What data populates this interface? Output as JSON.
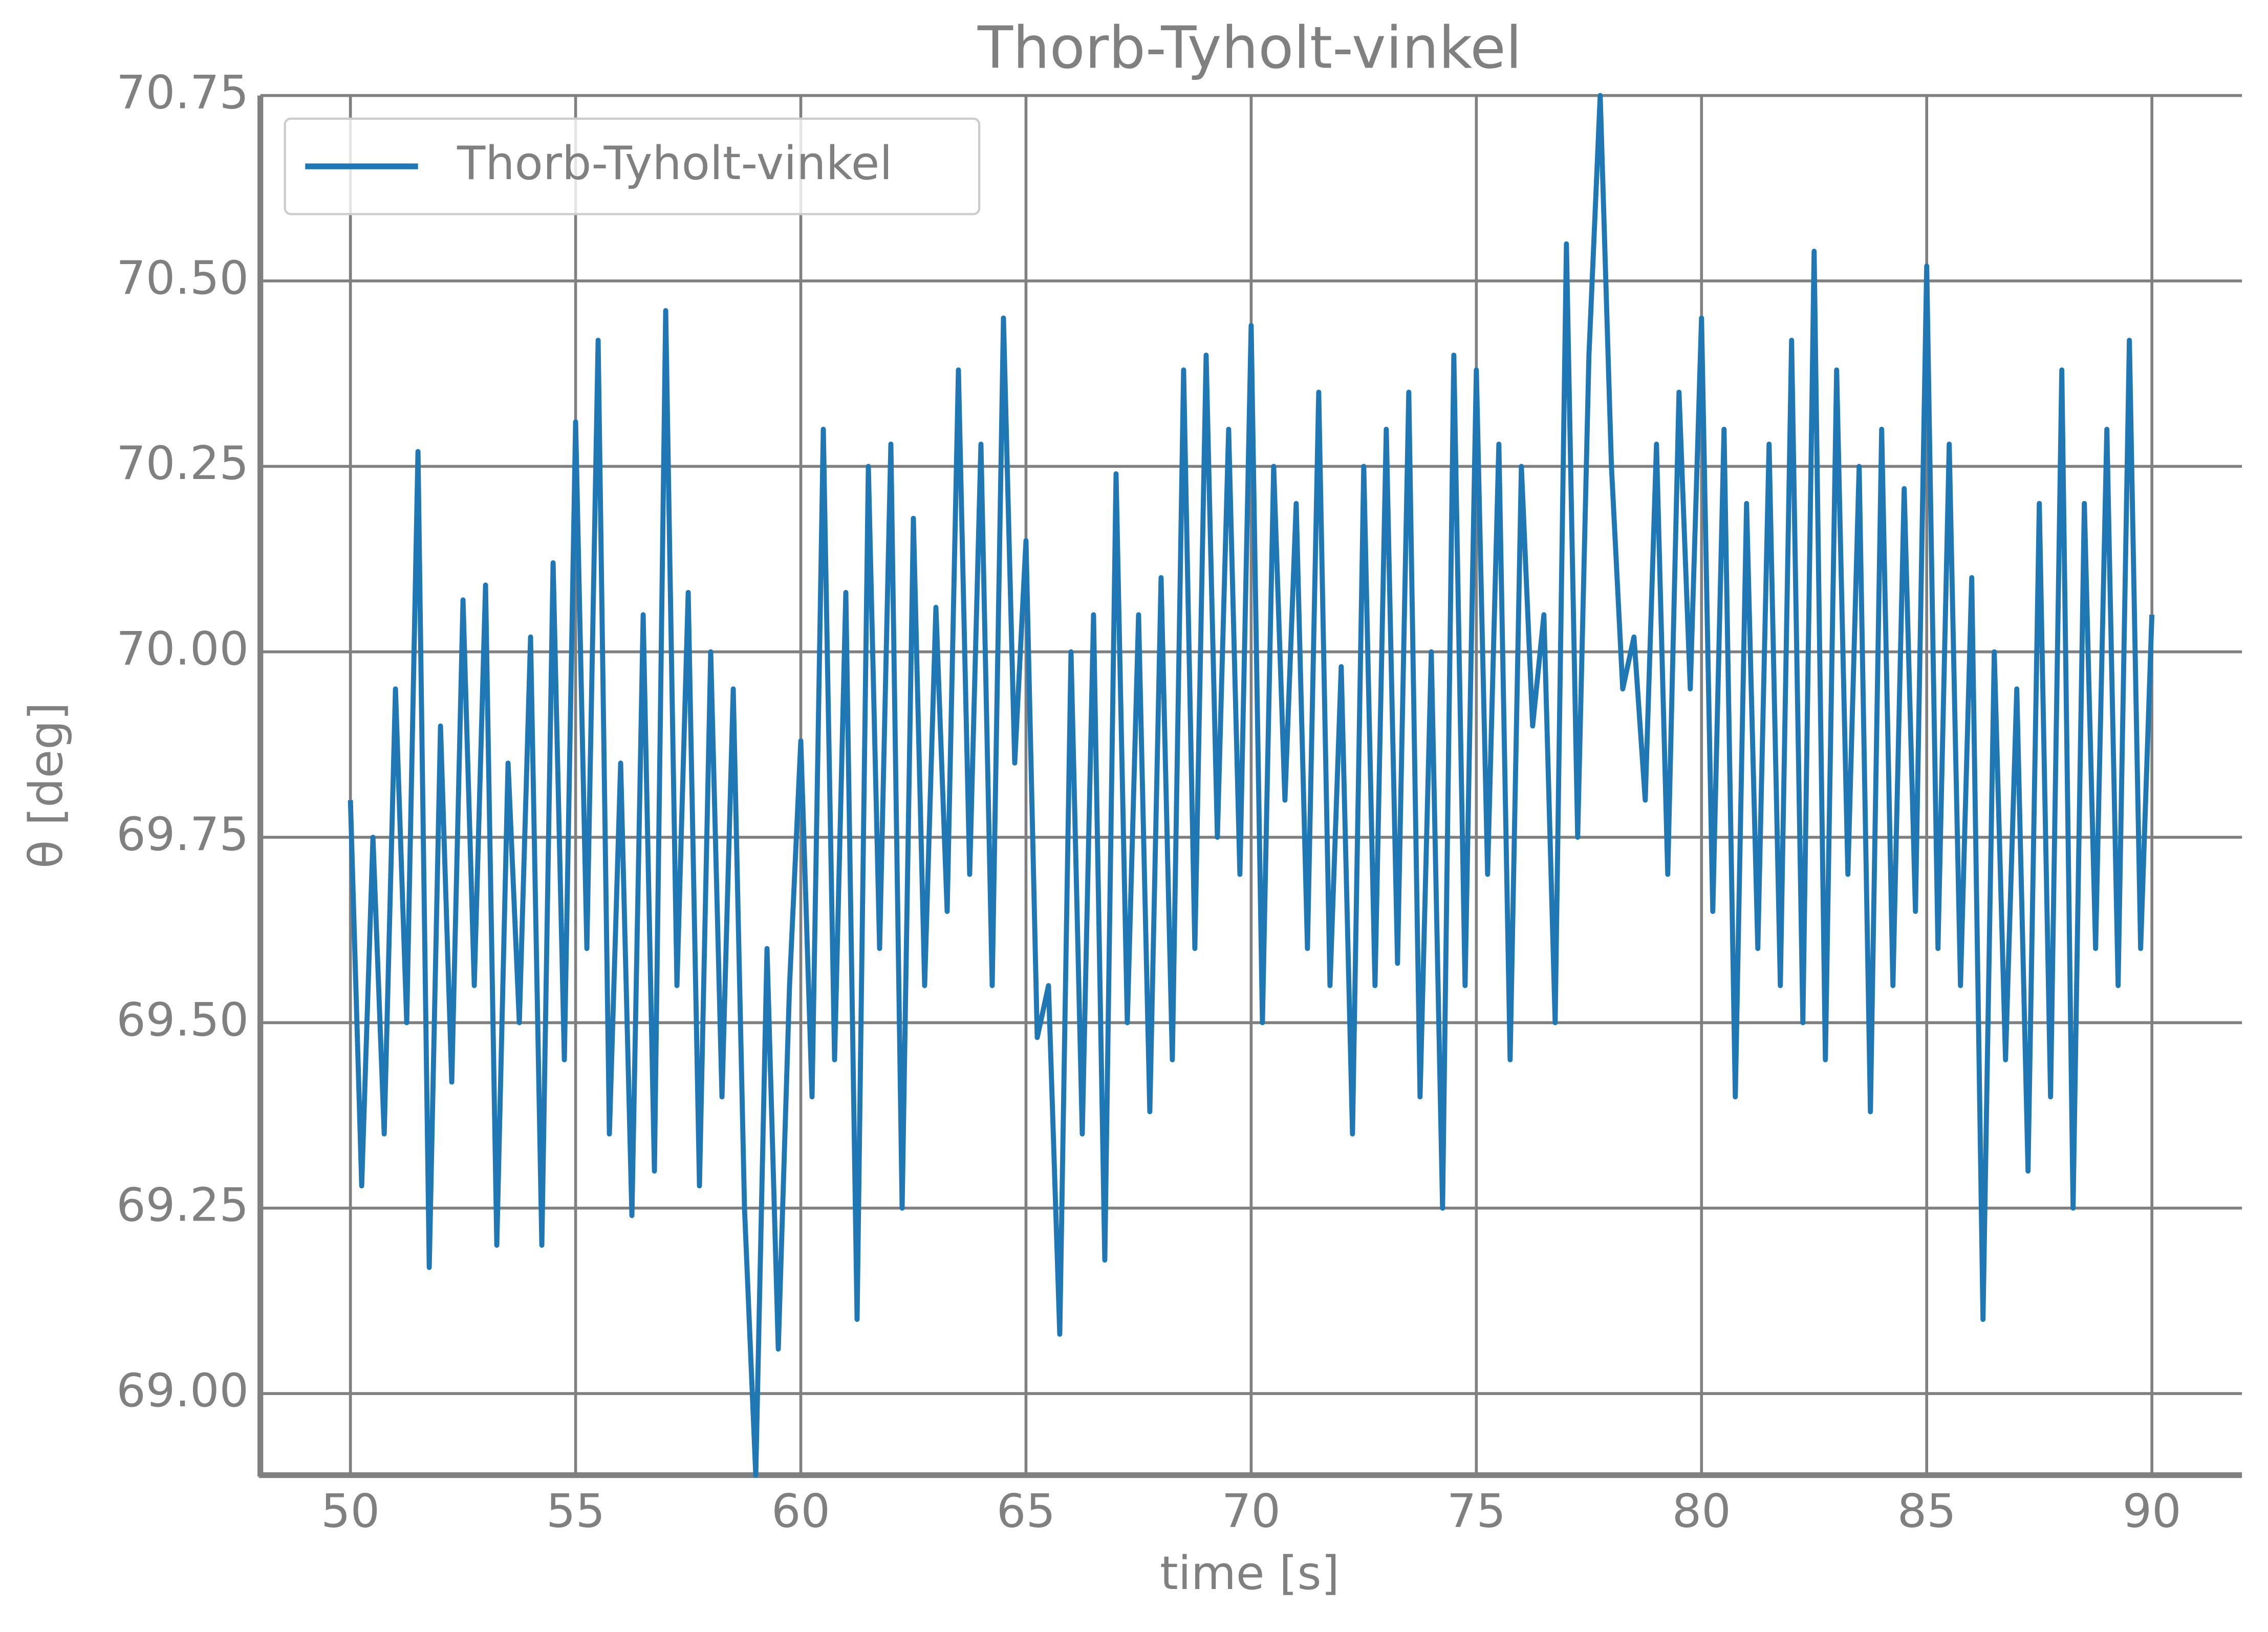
{
  "chart_data": {
    "type": "line",
    "title": "Thorb-Tyholt-vinkel",
    "xlabel": "time [s]",
    "ylabel": "θ [deg]",
    "legend": "upper left",
    "grid": true,
    "xlim": [
      48,
      92
    ],
    "ylim": [
      68.89,
      70.75
    ],
    "xticks": [
      50,
      55,
      60,
      65,
      70,
      75,
      80,
      85,
      90
    ],
    "yticks": [
      {
        "value": 69,
        "label": "69.00"
      },
      {
        "value": 69.25,
        "label": "69.25"
      },
      {
        "value": 69.5,
        "label": "69.50"
      },
      {
        "value": 69.75,
        "label": "69.75"
      },
      {
        "value": 70,
        "label": "70.00"
      },
      {
        "value": 70.25,
        "label": "70.25"
      },
      {
        "value": 70.5,
        "label": "70.50"
      },
      {
        "value": 70.75,
        "label": "70.75"
      }
    ],
    "x": [
      50,
      50.25,
      50.5,
      50.75,
      51,
      51.25,
      51.5,
      51.75,
      52,
      52.25,
      52.5,
      52.75,
      53,
      53.25,
      53.5,
      53.75,
      54,
      54.25,
      54.5,
      54.75,
      55,
      55.25,
      55.5,
      55.75,
      56,
      56.25,
      56.5,
      56.75,
      57,
      57.25,
      57.5,
      57.75,
      58,
      58.25,
      58.5,
      58.75,
      59,
      59.25,
      59.5,
      59.75,
      60,
      60.25,
      60.5,
      60.75,
      61,
      61.25,
      61.5,
      61.75,
      62,
      62.25,
      62.5,
      62.75,
      63,
      63.25,
      63.5,
      63.75,
      64,
      64.25,
      64.5,
      64.75,
      65,
      65.25,
      65.5,
      65.75,
      66,
      66.25,
      66.5,
      66.75,
      67,
      67.25,
      67.5,
      67.75,
      68,
      68.25,
      68.5,
      68.75,
      69,
      69.25,
      69.5,
      69.75,
      70,
      70.25,
      70.5,
      70.75,
      71,
      71.25,
      71.5,
      71.75,
      72,
      72.25,
      72.5,
      72.75,
      73,
      73.25,
      73.5,
      73.75,
      74,
      74.25,
      74.5,
      74.75,
      75,
      75.25,
      75.5,
      75.75,
      76,
      76.25,
      76.5,
      76.75,
      77,
      77.25,
      77.5,
      77.75,
      78,
      78.25,
      78.5,
      78.75,
      79,
      79.25,
      79.5,
      79.75,
      80,
      80.25,
      80.5,
      80.75,
      81,
      81.25,
      81.5,
      81.75,
      82,
      82.25,
      82.5,
      82.75,
      83,
      83.25,
      83.5,
      83.75,
      84,
      84.25,
      84.5,
      84.75,
      85,
      85.25,
      85.5,
      85.75,
      86,
      86.25,
      86.5,
      86.75,
      87,
      87.25,
      87.5,
      87.75,
      88,
      88.25,
      88.5,
      88.75,
      89,
      89.25,
      89.5,
      89.75,
      90
    ],
    "series": [
      {
        "name": "Thorb-Tyholt-vinkel",
        "color": "#1f77b4",
        "values": [
          69.8,
          69.28,
          69.75,
          69.35,
          69.95,
          69.5,
          70.27,
          69.17,
          69.9,
          69.42,
          70.07,
          69.55,
          70.09,
          69.2,
          69.85,
          69.5,
          70.02,
          69.2,
          70.12,
          69.45,
          70.31,
          69.6,
          70.42,
          69.35,
          69.85,
          69.24,
          70.05,
          69.3,
          70.46,
          69.55,
          70.08,
          69.28,
          70.0,
          69.4,
          69.95,
          69.25,
          68.89,
          69.6,
          69.06,
          69.55,
          69.88,
          69.4,
          70.3,
          69.45,
          70.08,
          69.1,
          70.25,
          69.6,
          70.28,
          69.25,
          70.18,
          69.55,
          70.06,
          69.65,
          70.38,
          69.7,
          70.28,
          69.55,
          70.45,
          69.85,
          70.15,
          69.48,
          69.55,
          69.08,
          70.0,
          69.35,
          70.05,
          69.18,
          70.24,
          69.5,
          70.05,
          69.38,
          70.1,
          69.45,
          70.38,
          69.6,
          70.4,
          69.75,
          70.3,
          69.7,
          70.44,
          69.5,
          70.25,
          69.8,
          70.2,
          69.6,
          70.35,
          69.55,
          69.98,
          69.35,
          70.25,
          69.55,
          70.3,
          69.58,
          70.35,
          69.4,
          70.0,
          69.25,
          70.4,
          69.55,
          70.38,
          69.7,
          70.28,
          69.45,
          70.25,
          69.9,
          70.05,
          69.5,
          70.55,
          69.75,
          70.4,
          70.75,
          70.25,
          69.95,
          70.02,
          69.8,
          70.28,
          69.7,
          70.35,
          69.95,
          70.45,
          69.65,
          70.3,
          69.4,
          70.2,
          69.6,
          70.28,
          69.55,
          70.42,
          69.5,
          70.54,
          69.45,
          70.38,
          69.7,
          70.25,
          69.38,
          70.3,
          69.55,
          70.22,
          69.65,
          70.52,
          69.6,
          70.28,
          69.55,
          70.1,
          69.1,
          70.0,
          69.45,
          69.95,
          69.3,
          70.2,
          69.4,
          70.38,
          69.25,
          70.2,
          69.6,
          70.3,
          69.55,
          70.42,
          69.6,
          70.05
        ]
      }
    ]
  }
}
